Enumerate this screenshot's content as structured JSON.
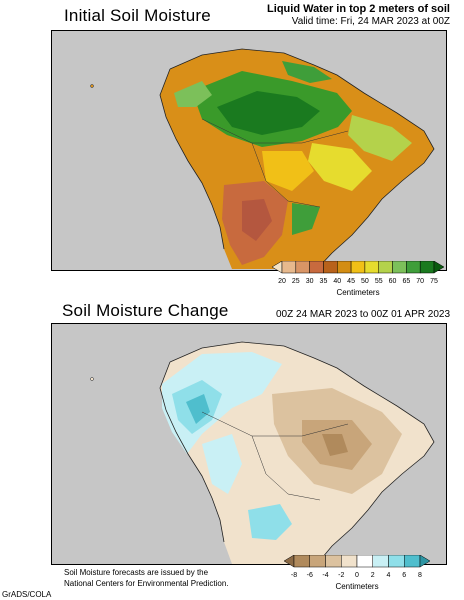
{
  "panel_top": {
    "title": "Initial Soil Moisture",
    "header_line1": "Liquid Water in top 2 meters of soil",
    "header_line2": "Valid time: Fri, 24 MAR 2023 at 00Z",
    "legend": {
      "ticks": [
        "20",
        "25",
        "30",
        "35",
        "40",
        "45",
        "50",
        "55",
        "60",
        "65",
        "70",
        "75"
      ],
      "colors": [
        "#f5e3c6",
        "#e7b98d",
        "#d99566",
        "#c86a3e",
        "#b8621b",
        "#d38d13",
        "#f1c017",
        "#e6dc2e",
        "#b4d24b",
        "#7cc05a",
        "#3f9e3a",
        "#1a7a1f",
        "#0a5a0f"
      ],
      "unit": "Centimeters"
    }
  },
  "panel_bottom": {
    "title": "Soil Moisture Change",
    "header_line1": "00Z 24 MAR 2023 to 00Z 01 APR 2023",
    "legend": {
      "ticks": [
        "-8",
        "-6",
        "-4",
        "-2",
        "0",
        "2",
        "4",
        "6",
        "8"
      ],
      "colors": [
        "#8b6a45",
        "#b08a5c",
        "#c8a57a",
        "#dcc29f",
        "#f1e2cc",
        "#ffffff",
        "#c9f0f5",
        "#8fdfe9",
        "#4fbecd",
        "#2e95a3"
      ],
      "unit": "Centimeters"
    },
    "footnote_line1": "Soil Moisture forecasts are issued by the",
    "footnote_line2": "National Centers for Environmental Prediction."
  },
  "credit": "GrADS/COLA"
}
